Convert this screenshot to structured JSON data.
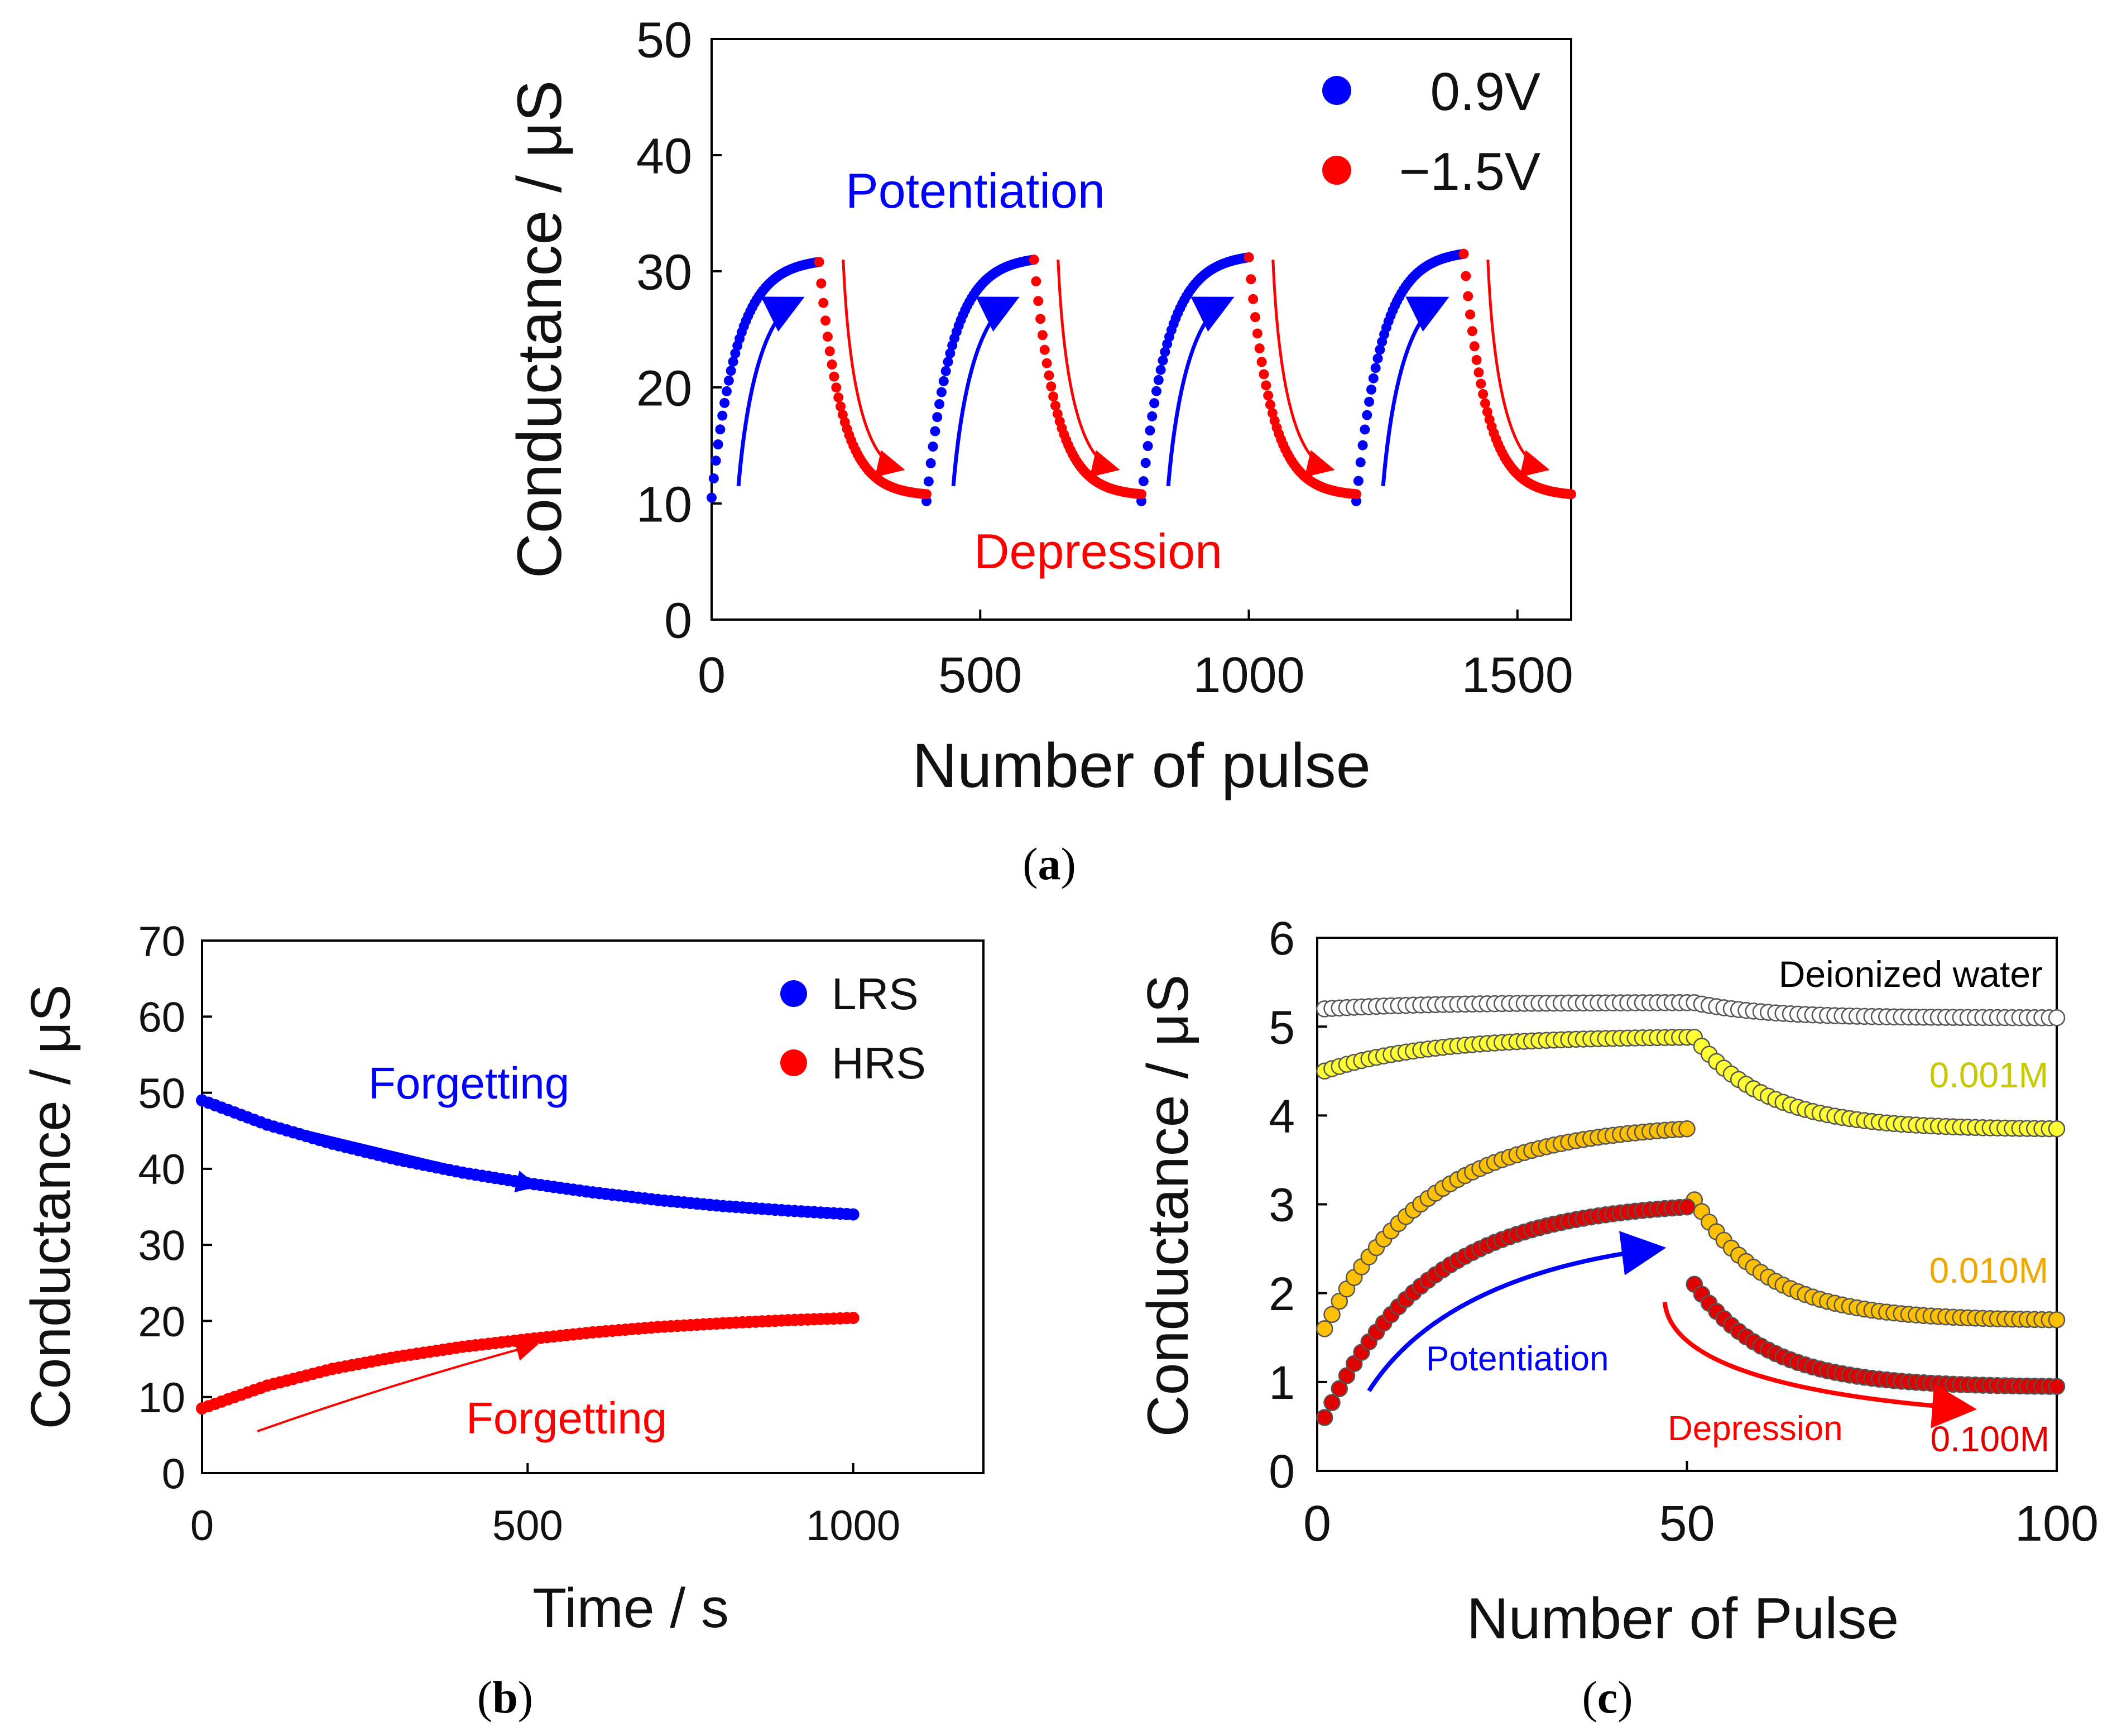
{
  "chart_data": [
    {
      "panel": "a",
      "caption_letter": "a",
      "type": "scatter",
      "xlabel": "Number of pulse",
      "ylabel": "Conductance / μS",
      "xlim": [
        0,
        1600
      ],
      "ylim": [
        0,
        50
      ],
      "xticks": [
        0,
        500,
        1000,
        1500
      ],
      "yticks": [
        0,
        10,
        20,
        30,
        40,
        50
      ],
      "legend_position": "top-right",
      "annotations": {
        "potentiation": "Potentiation",
        "depression": "Depression"
      },
      "series": [
        {
          "name": "0.9V",
          "color": "#0000ff",
          "kind": "potentiation",
          "cycles": [
            {
              "x_start": 0,
              "x_end": 200,
              "y_start": 10.5,
              "y_end": 30.8
            },
            {
              "x_start": 400,
              "x_end": 600,
              "y_start": 10.2,
              "y_end": 31.0
            },
            {
              "x_start": 800,
              "x_end": 1000,
              "y_start": 10.2,
              "y_end": 31.2
            },
            {
              "x_start": 1200,
              "x_end": 1400,
              "y_start": 10.2,
              "y_end": 31.5
            }
          ]
        },
        {
          "name": "−1.5V",
          "color": "#ff0000",
          "kind": "depression",
          "cycles": [
            {
              "x_start": 200,
              "x_end": 400,
              "y_start": 30.8,
              "y_end": 10.8
            },
            {
              "x_start": 600,
              "x_end": 800,
              "y_start": 31.0,
              "y_end": 10.8
            },
            {
              "x_start": 1000,
              "x_end": 1200,
              "y_start": 31.2,
              "y_end": 10.8
            },
            {
              "x_start": 1400,
              "x_end": 1600,
              "y_start": 31.5,
              "y_end": 10.8
            }
          ]
        }
      ]
    },
    {
      "panel": "b",
      "caption_letter": "b",
      "type": "scatter",
      "xlabel": "Time / s",
      "ylabel": "Conductance / μS",
      "xlim": [
        0,
        1200
      ],
      "ylim": [
        0,
        70
      ],
      "xticks": [
        0,
        500,
        1000
      ],
      "yticks": [
        0,
        10,
        20,
        30,
        40,
        50,
        60,
        70
      ],
      "legend_position": "top-right",
      "annotations": {
        "forgetting_lrs": "Forgetting",
        "forgetting_hrs": "Forgetting"
      },
      "series": [
        {
          "name": "LRS",
          "color": "#0000ff",
          "x": [
            0,
            100,
            200,
            300,
            400,
            500,
            600,
            700,
            800,
            900,
            1000
          ],
          "y": [
            49.0,
            45.8,
            43.3,
            41.2,
            39.5,
            38.1,
            36.9,
            35.9,
            35.1,
            34.5,
            34.0
          ]
        },
        {
          "name": "HRS",
          "color": "#ff0000",
          "x": [
            0,
            100,
            200,
            300,
            400,
            500,
            600,
            700,
            800,
            900,
            1000
          ],
          "y": [
            8.5,
            11.5,
            13.7,
            15.3,
            16.6,
            17.6,
            18.5,
            19.2,
            19.7,
            20.1,
            20.4
          ]
        }
      ]
    },
    {
      "panel": "c",
      "caption_letter": "c",
      "type": "scatter",
      "xlabel": "Number of Pulse",
      "ylabel": "Conductance / μS",
      "xlim": [
        0,
        100
      ],
      "ylim": [
        0,
        6
      ],
      "xticks": [
        0,
        50,
        100
      ],
      "yticks": [
        0,
        1,
        2,
        3,
        4,
        5,
        6
      ],
      "annotations": {
        "potentiation": "Potentiation",
        "depression": "Depression"
      },
      "series": [
        {
          "name": "Deionized water",
          "color": "#ffffff",
          "p_start": 5.2,
          "p_end": 5.27,
          "d_end": 5.1
        },
        {
          "name": "0.001M",
          "color": "#ffff33",
          "p_start": 4.5,
          "p_end": 4.88,
          "d_end": 3.85
        },
        {
          "name": "0.010M",
          "color": "#ffc000",
          "p_start": 1.6,
          "p_end": 3.85,
          "d_start": 3.05,
          "d_end": 1.7
        },
        {
          "name": "0.100M",
          "color": "#e00000",
          "p_start": 0.6,
          "p_end": 2.97,
          "d_start": 2.1,
          "d_end": 0.95
        }
      ]
    }
  ]
}
